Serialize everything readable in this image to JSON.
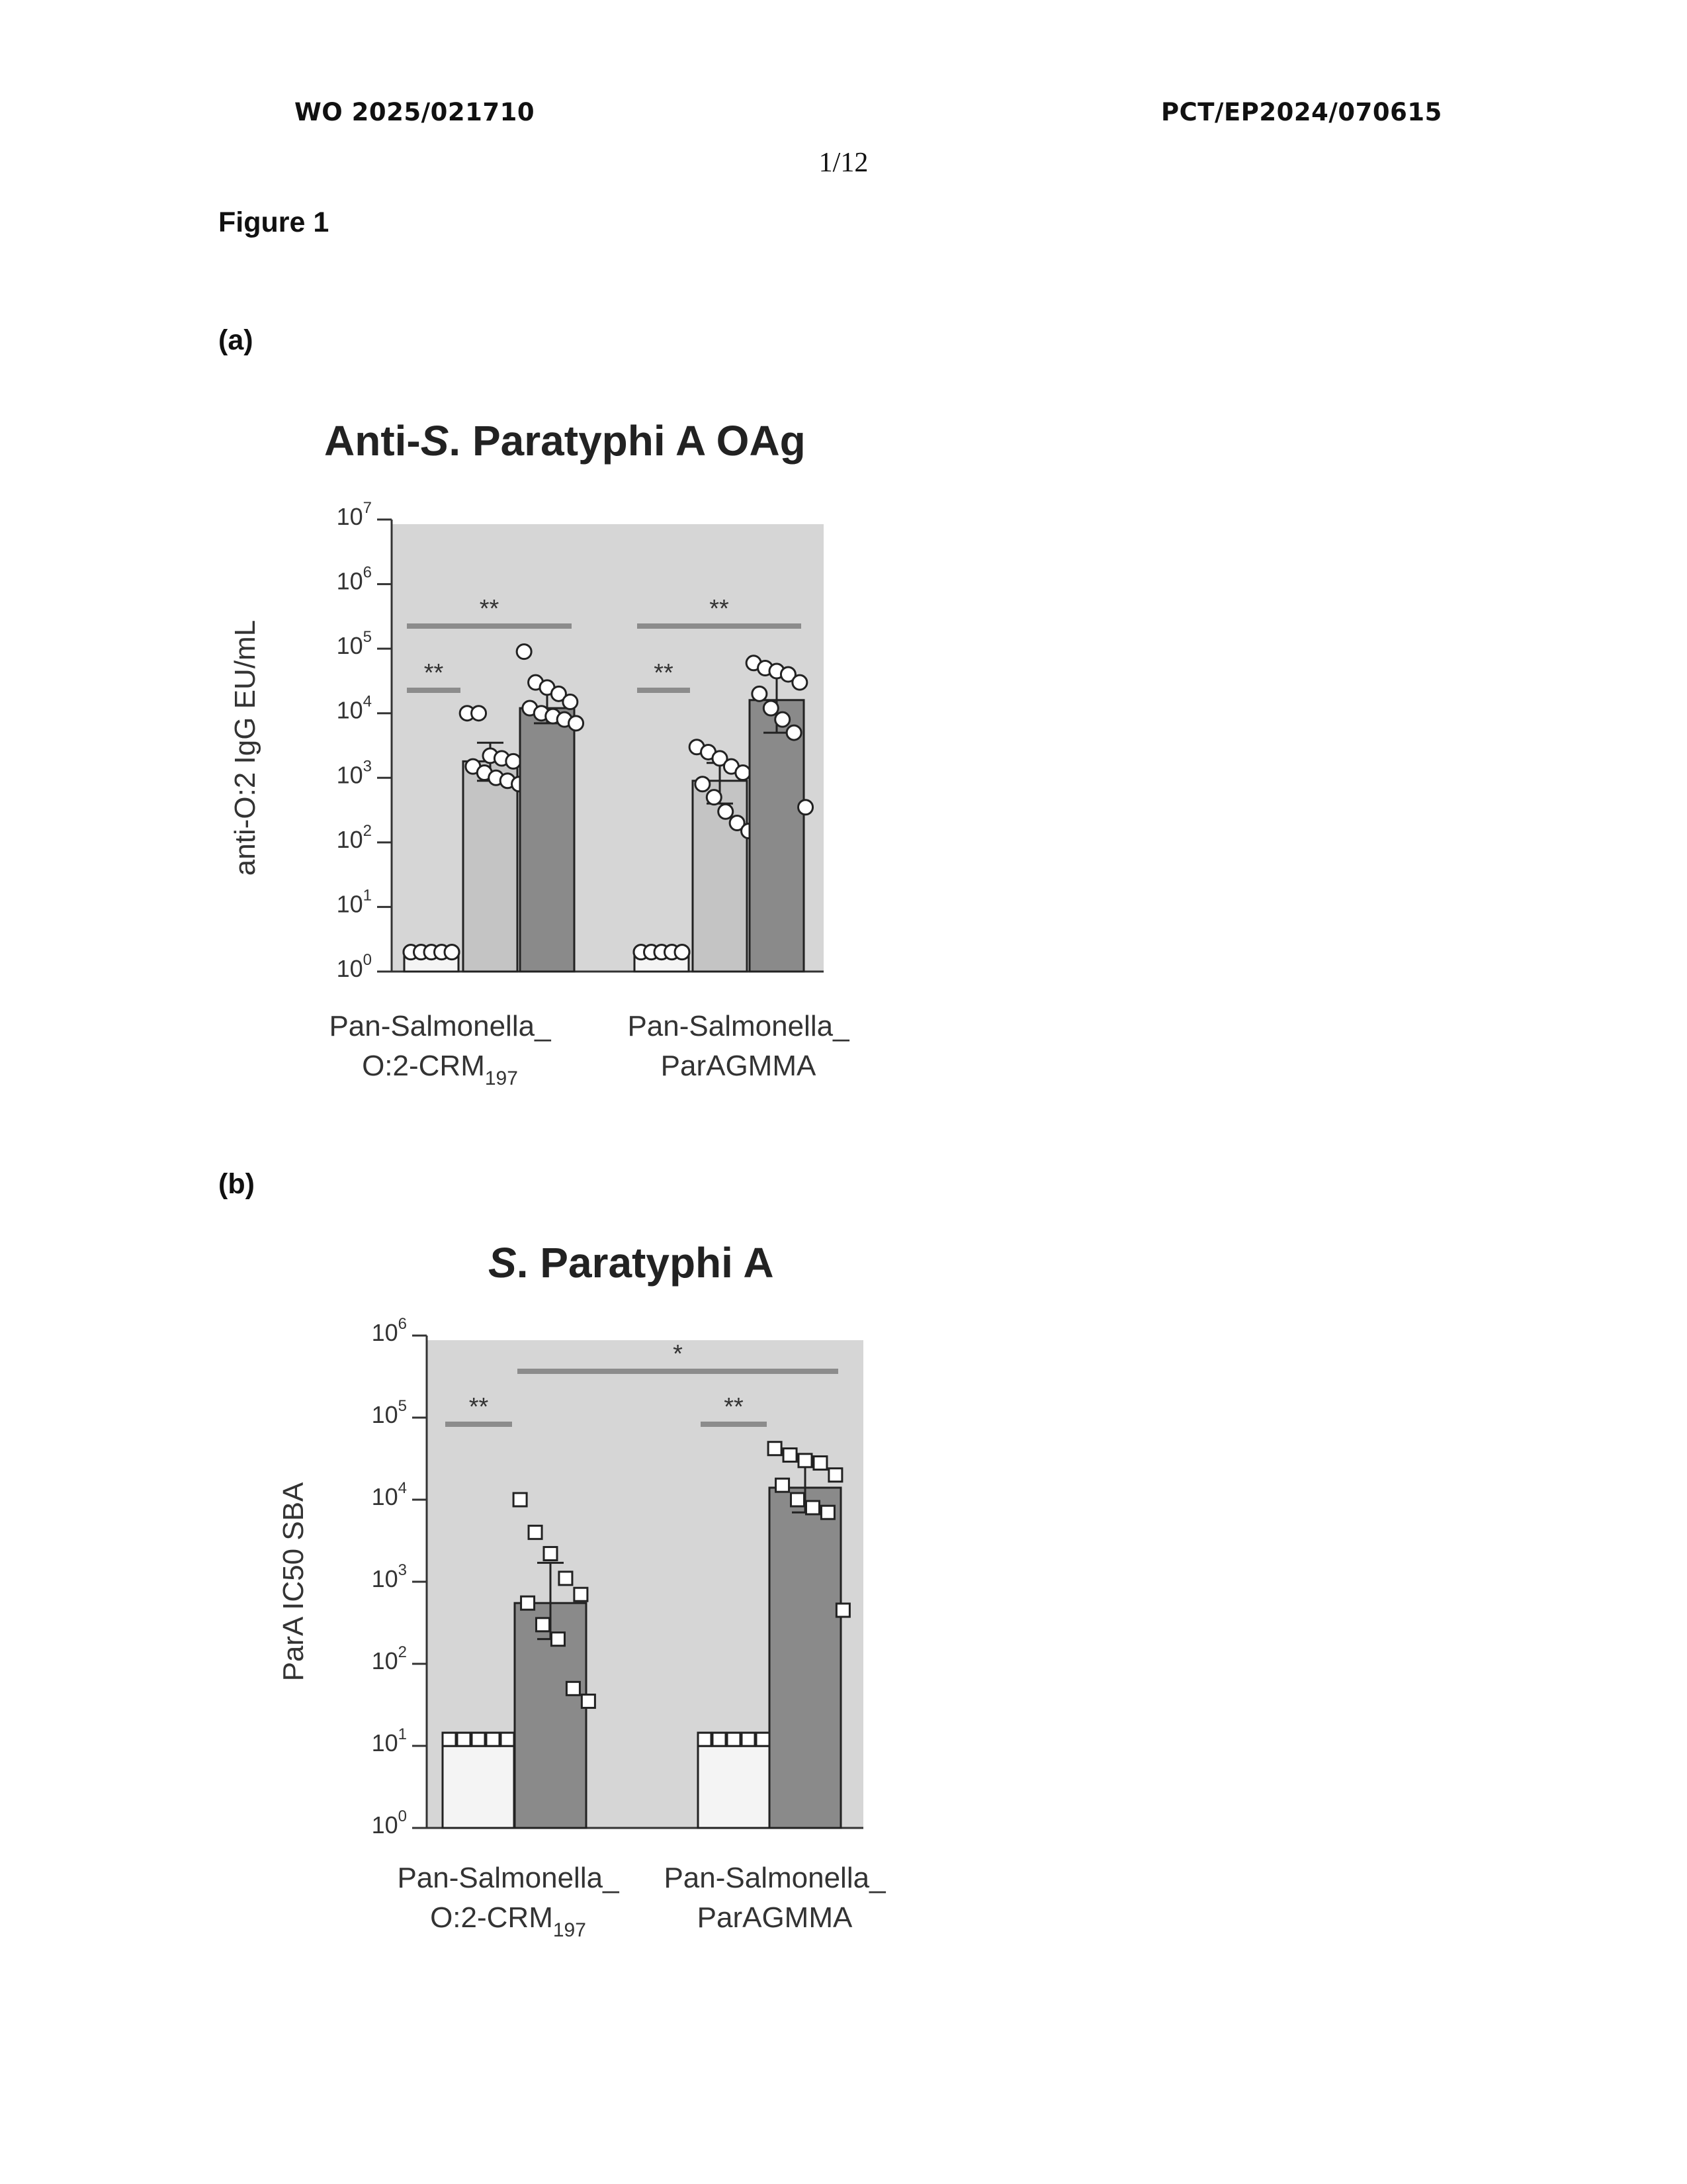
{
  "header": {
    "left": "WO 2025/021710",
    "right": "PCT/EP2024/070615",
    "page": "1/12"
  },
  "figure_title": "Figure 1",
  "panels": [
    {
      "label": "(a)"
    },
    {
      "label": "(b)"
    }
  ],
  "colors": {
    "plot_bg": "#d6d6d6",
    "bar_light": "#c4c4c4",
    "bar_dark": "#8a8a8a",
    "bar_baseline": "#f4f4f4",
    "sig_line": "#8c8c8c",
    "axis": "#333333"
  },
  "chart_data": [
    {
      "type": "bar",
      "title_parts": [
        "Anti-",
        "S",
        ". Paratyphi A OAg"
      ],
      "ylabel": "anti-O:2 IgG EU/mL",
      "yscale": "log",
      "ylim": [
        1,
        10000000
      ],
      "yticks": [
        {
          "value": 1,
          "mantissa": "10",
          "exp": "0"
        },
        {
          "value": 10,
          "mantissa": "10",
          "exp": "1"
        },
        {
          "value": 100,
          "mantissa": "10",
          "exp": "2"
        },
        {
          "value": 1000,
          "mantissa": "10",
          "exp": "3"
        },
        {
          "value": 10000,
          "mantissa": "10",
          "exp": "4"
        },
        {
          "value": 100000,
          "mantissa": "10",
          "exp": "5"
        },
        {
          "value": 1000000,
          "mantissa": "10",
          "exp": "6"
        },
        {
          "value": 10000000,
          "mantissa": "10",
          "exp": "7"
        }
      ],
      "groups": [
        {
          "name": "Pan-Salmonella_",
          "name2": "O:2-CRM",
          "sub": "197"
        },
        {
          "name": "Pan-Salmonella_",
          "name2": "ParAGMMA",
          "sub": ""
        }
      ],
      "marker": "circle",
      "bars": [
        {
          "group": 0,
          "style": "baseline",
          "value": 2,
          "points": [
            2,
            2,
            2,
            2,
            2,
            2,
            2,
            2,
            2,
            2
          ]
        },
        {
          "group": 0,
          "style": "light",
          "value": 1800,
          "err": [
            900,
            3500
          ],
          "points": [
            10000,
            10000,
            2200,
            2000,
            1800,
            1500,
            1200,
            1000,
            900,
            800
          ]
        },
        {
          "group": 0,
          "style": "dark",
          "value": 12000,
          "err": [
            7000,
            25000
          ],
          "points": [
            90000,
            30000,
            25000,
            20000,
            15000,
            12000,
            10000,
            9000,
            8000,
            7000
          ]
        },
        {
          "group": 1,
          "style": "baseline",
          "value": 2,
          "points": [
            2,
            2,
            2,
            2,
            2,
            2,
            2,
            2,
            2,
            2
          ]
        },
        {
          "group": 1,
          "style": "light",
          "value": 900,
          "err": [
            400,
            1700
          ],
          "points": [
            3000,
            2500,
            2000,
            1500,
            1200,
            800,
            500,
            300,
            200,
            150
          ]
        },
        {
          "group": 1,
          "style": "dark",
          "value": 16000,
          "err": [
            5000,
            45000
          ],
          "points": [
            60000,
            50000,
            45000,
            40000,
            30000,
            20000,
            12000,
            8000,
            5000,
            350
          ]
        }
      ],
      "significance": [
        {
          "from": 0,
          "to": 2,
          "label": "**",
          "level": 1
        },
        {
          "from": 0,
          "to": 1,
          "label": "**",
          "level": 0
        },
        {
          "from": 3,
          "to": 5,
          "label": "**",
          "level": 1
        },
        {
          "from": 3,
          "to": 4,
          "label": "**",
          "level": 0
        }
      ]
    },
    {
      "type": "bar",
      "title_parts": [
        "",
        "S",
        ". Paratyphi A"
      ],
      "ylabel": "ParA IC50 SBA",
      "yscale": "log",
      "ylim": [
        1,
        1000000
      ],
      "yticks": [
        {
          "value": 1,
          "mantissa": "10",
          "exp": "0"
        },
        {
          "value": 10,
          "mantissa": "10",
          "exp": "1"
        },
        {
          "value": 100,
          "mantissa": "10",
          "exp": "2"
        },
        {
          "value": 1000,
          "mantissa": "10",
          "exp": "3"
        },
        {
          "value": 10000,
          "mantissa": "10",
          "exp": "4"
        },
        {
          "value": 100000,
          "mantissa": "10",
          "exp": "5"
        },
        {
          "value": 1000000,
          "mantissa": "10",
          "exp": "6"
        }
      ],
      "groups": [
        {
          "name": "Pan-Salmonella_",
          "name2": "O:2-CRM",
          "sub": "197"
        },
        {
          "name": "Pan-Salmonella_",
          "name2": "ParAGMMA",
          "sub": ""
        }
      ],
      "marker": "square",
      "bars": [
        {
          "group": 0,
          "style": "baseline",
          "value": 12,
          "points": [
            12,
            12,
            12,
            12,
            12,
            12,
            12,
            12,
            12,
            12
          ]
        },
        {
          "group": 0,
          "style": "dark",
          "value": 550,
          "err": [
            200,
            1700
          ],
          "points": [
            10000,
            4000,
            2200,
            1100,
            700,
            550,
            300,
            200,
            50,
            35
          ]
        },
        {
          "group": 1,
          "style": "baseline",
          "value": 12,
          "points": [
            12,
            12,
            12,
            12,
            12,
            12,
            12,
            12,
            12,
            12
          ]
        },
        {
          "group": 1,
          "style": "dark",
          "value": 14000,
          "err": [
            7000,
            30000
          ],
          "points": [
            42000,
            35000,
            30000,
            28000,
            20000,
            15000,
            10000,
            8000,
            7000,
            450
          ]
        }
      ],
      "significance": [
        {
          "from": 0,
          "to": 1,
          "label": "**",
          "level": 0
        },
        {
          "from": 2,
          "to": 3,
          "label": "**",
          "level": 0
        },
        {
          "from": 1,
          "to": 3,
          "label": "*",
          "level": 1
        }
      ]
    }
  ]
}
